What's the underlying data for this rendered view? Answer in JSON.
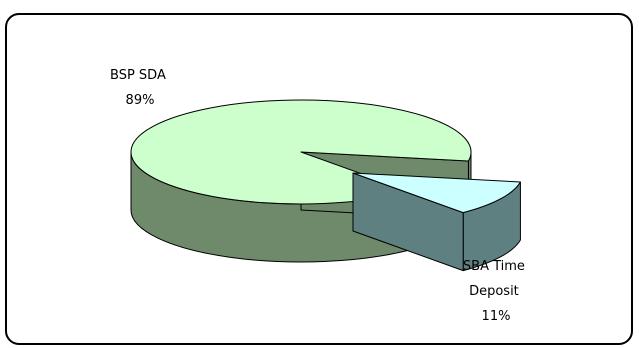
{
  "chart_data": {
    "type": "pie",
    "style": "3d-exploded",
    "title": "",
    "slices": [
      {
        "name": "BSP SDA",
        "value": 89,
        "percent_label": "89%",
        "top_color": "#ccffcc",
        "side_color": "#6e8a6a"
      },
      {
        "name": "SBA Time Deposit",
        "value": 11,
        "percent_label": "11%",
        "top_color": "#ccffff",
        "side_color": "#5e8080"
      }
    ]
  }
}
